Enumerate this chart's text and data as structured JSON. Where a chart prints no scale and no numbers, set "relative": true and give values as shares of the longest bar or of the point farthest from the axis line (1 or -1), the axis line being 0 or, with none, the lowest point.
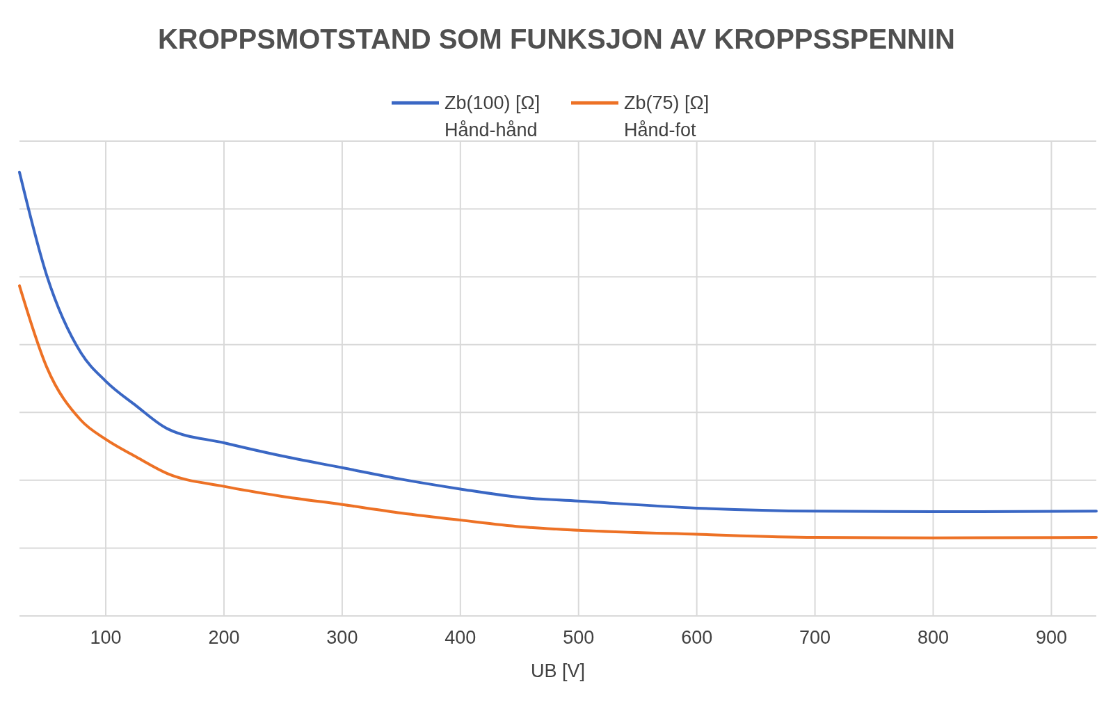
{
  "chart_data": {
    "type": "line",
    "title": "KROPPSMOTSTAND SOM FUNKSJON AV KROPPSSPENNIN",
    "xlabel": "UB [V]",
    "relative": true,
    "grid": true,
    "legend": "top",
    "line_style": "solid",
    "xlim": [
      27,
      938
    ],
    "xticks": [
      100,
      200,
      300,
      400,
      500,
      600,
      700,
      800,
      900
    ],
    "series": [
      {
        "name": "Zb(100) [Ω] Hånd-hånd",
        "color": "#3a67c4",
        "x": [
          27,
          50,
          79,
          100,
          126,
          152,
          200,
          248,
          300,
          350,
          400,
          451,
          500,
          600,
          700,
          800,
          938
        ],
        "values": [
          1.0,
          0.768,
          0.593,
          0.529,
          0.473,
          0.422,
          0.39,
          0.361,
          0.334,
          0.308,
          0.286,
          0.267,
          0.259,
          0.243,
          0.236,
          0.235,
          0.236
        ]
      },
      {
        "name": "Zb(75) [Ω] Hånd-fot",
        "color": "#ed7125",
        "x": [
          27,
          50,
          79,
          100,
          126,
          152,
          200,
          248,
          300,
          350,
          400,
          451,
          500,
          600,
          700,
          800,
          938
        ],
        "values": [
          0.744,
          0.561,
          0.441,
          0.398,
          0.358,
          0.321,
          0.292,
          0.27,
          0.251,
          0.232,
          0.216,
          0.201,
          0.193,
          0.184,
          0.177,
          0.176,
          0.177
        ]
      }
    ]
  }
}
